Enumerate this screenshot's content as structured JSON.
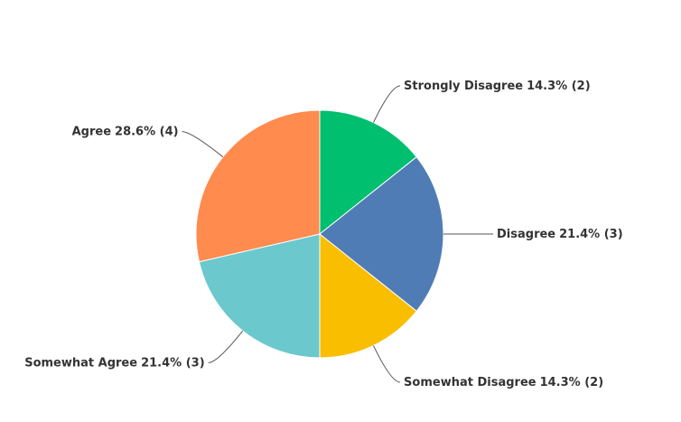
{
  "chart_data": {
    "type": "pie",
    "categories": [
      "Strongly Disagree",
      "Disagree",
      "Somewhat Disagree",
      "Somewhat Agree",
      "Agree"
    ],
    "values": [
      14.3,
      21.4,
      14.3,
      21.4,
      28.6
    ],
    "value_labels": [
      "14.3% (2)",
      "21.4% (3)",
      "14.3% (2)",
      "21.4% (3)",
      "28.6% (4)"
    ],
    "colors": [
      "#00bf6f",
      "#507cb6",
      "#f9be00",
      "#6bc8cd",
      "#ff8b4f"
    ]
  }
}
